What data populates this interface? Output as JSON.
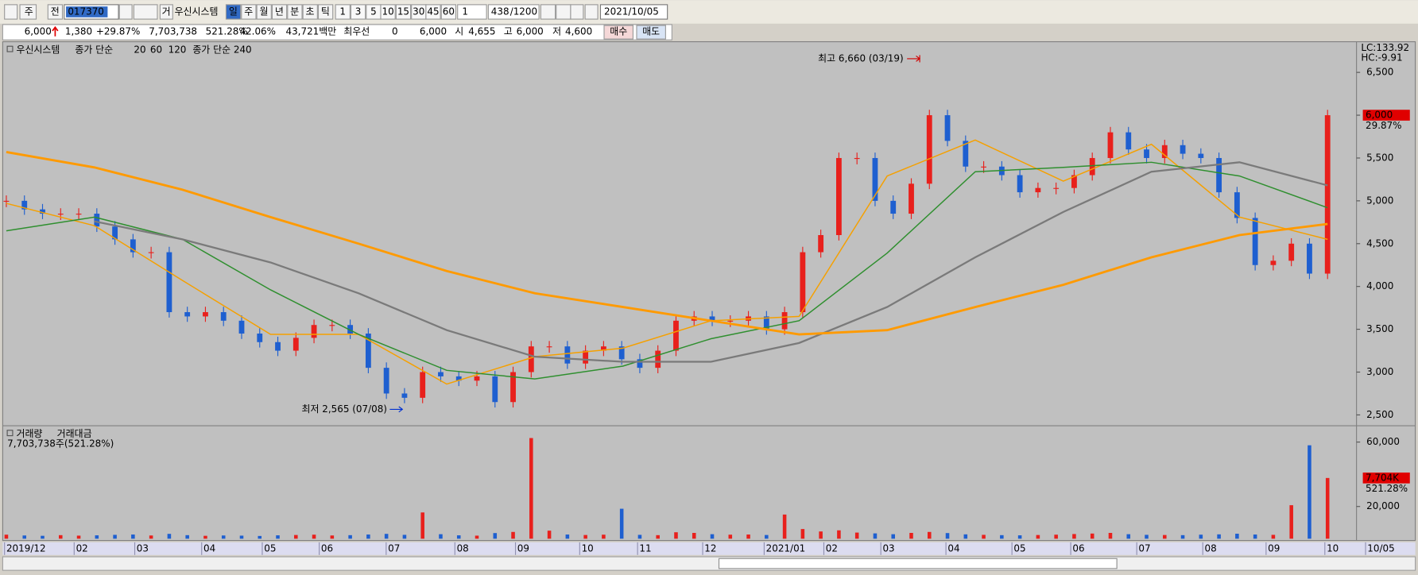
{
  "toolbar": {
    "period_prefix": "주",
    "scope": "전",
    "code": "017370",
    "group": "거",
    "name": "우신시스템",
    "intervals": [
      "일",
      "주",
      "월",
      "년",
      "분",
      "초",
      "틱"
    ],
    "counts": [
      "1",
      "3",
      "5",
      "10",
      "15",
      "30",
      "45",
      "60"
    ],
    "multiplier": "1",
    "shown": "438",
    "total": "/1200",
    "date": "2021/10/05"
  },
  "info_bar": {
    "price": "6,000",
    "change": "1,380",
    "change_pct": "+29.87%",
    "volume": "7,703,738",
    "volume_ratio": "521.28%",
    "turnover": "42.06%",
    "amount": "43,721백만",
    "best_label": "최우선",
    "best_qty": "0",
    "best_price": "6,000",
    "open_label": "시",
    "open": "4,655",
    "high_label": "고",
    "high": "6,000",
    "low_label": "저",
    "low": "4,600",
    "buy": "매수",
    "sell": "매도"
  },
  "chart_data": {
    "type": "candlestick",
    "legend": {
      "ma_label": "종가 단순"
    },
    "series": [
      {
        "name": "우신시스템",
        "up_color": "#e8201c",
        "down_color": "#1e5fd0",
        "values": [
          5000,
          4900,
          4850,
          4850,
          4850,
          4700,
          4550,
          4400,
          4400,
          3700,
          3650,
          3700,
          3600,
          3450,
          3350,
          3250,
          3400,
          3550,
          3550,
          3450,
          3050,
          2750,
          2700,
          3000,
          2950,
          2900,
          2950,
          2650,
          3000,
          3300,
          3300,
          3100,
          3250,
          3300,
          3150,
          3050,
          3250,
          3600,
          3650,
          3600,
          3600,
          3650,
          3500,
          3700,
          4400,
          4600,
          5500,
          5500,
          5000,
          4850,
          5200,
          6000,
          5700,
          5400,
          5400,
          5300,
          5100,
          5150,
          5150,
          5300,
          5500,
          5800,
          5600,
          5500,
          5650,
          5550,
          5500,
          5100,
          4800,
          4250,
          4300,
          4500,
          4150,
          6000
        ]
      },
      {
        "name": "20",
        "color": "#f5a000",
        "values": [
          4970,
          4710,
          4070,
          3440,
          3440,
          2860,
          3180,
          3280,
          3600,
          3650,
          5290,
          5710,
          5230,
          5660,
          4810,
          4550
        ]
      },
      {
        "name": "60",
        "color": "#2f8f2f",
        "values": [
          4650,
          4810,
          4550,
          3960,
          3440,
          3020,
          2920,
          3070,
          3390,
          3600,
          4390,
          5340,
          5390,
          5450,
          5290,
          4920
        ]
      },
      {
        "name": "120",
        "color": "#7a7a7a",
        "values": [
          null,
          4760,
          4550,
          4280,
          3920,
          3490,
          3180,
          3120,
          3120,
          3340,
          3760,
          4340,
          4870,
          5340,
          5450,
          5180
        ]
      },
      {
        "name": "종가 단순 240",
        "color": "#ff9a00",
        "values": [
          5570,
          5390,
          5130,
          4810,
          4500,
          4180,
          3920,
          3760,
          3600,
          3440,
          3490,
          3760,
          4020,
          4340,
          4600,
          4730
        ]
      }
    ],
    "ylim": [
      2405,
      6837
    ],
    "yticks": [
      {
        "value": 2500,
        "label": "2,500"
      },
      {
        "value": 3000,
        "label": "3,000"
      },
      {
        "value": 3500,
        "label": "3,500"
      },
      {
        "value": 4000,
        "label": "4,000"
      },
      {
        "value": 4500,
        "label": "4,500"
      },
      {
        "value": 5000,
        "label": "5,000"
      },
      {
        "value": 5500,
        "label": "5,500"
      },
      {
        "value": 6000,
        "label": "6,000"
      },
      {
        "value": 6500,
        "label": "6,500"
      }
    ],
    "indicators": {
      "lc": "LC:133.92",
      "hc": "HC:-9.91"
    },
    "last_price_label": "6,000",
    "last_change_label": "29.87%",
    "annotations": [
      {
        "text": "최고 6,660 (03/19)",
        "value": 6660
      },
      {
        "text": "최저 2,565 (07/08)",
        "value": 2565
      }
    ],
    "x_labels": [
      "2019/12",
      "02",
      "03",
      "04",
      "05",
      "06",
      "07",
      "08",
      "09",
      "10",
      "11",
      "12",
      "2021/01",
      "02",
      "03",
      "04",
      "05",
      "06",
      "07",
      "08",
      "09",
      "10",
      "10/05"
    ],
    "volume": {
      "legend": [
        "거래량",
        "거래대금"
      ],
      "summary": "7,703,738주(521.28%)",
      "values": [
        2500,
        2000,
        1800,
        2200,
        1900,
        2100,
        2400,
        2600,
        2000,
        3000,
        2200,
        1800,
        2000,
        1900,
        1700,
        2100,
        2300,
        2500,
        2000,
        2200,
        2600,
        3000,
        2400,
        16300,
        2800,
        2100,
        1900,
        3500,
        4200,
        62500,
        5000,
        2600,
        2300,
        2500,
        18600,
        2400,
        2200,
        4000,
        3600,
        2800,
        2500,
        2600,
        2300,
        15000,
        6000,
        4500,
        5200,
        3800,
        3300,
        2800,
        3600,
        4200,
        3500,
        2700,
        2400,
        2200,
        2100,
        2300,
        2500,
        2900,
        3200,
        3600,
        2800,
        2400,
        2300,
        2200,
        2500,
        2700,
        3100,
        2600,
        2400,
        20800,
        58000,
        37700
      ],
      "ylim": [
        0,
        68450
      ],
      "yticks": [
        {
          "value": 20000,
          "label": "20,000"
        },
        {
          "value": 60000,
          "label": "60,000"
        }
      ],
      "last_label": "7,704K",
      "last_ratio": "521.28%"
    }
  }
}
